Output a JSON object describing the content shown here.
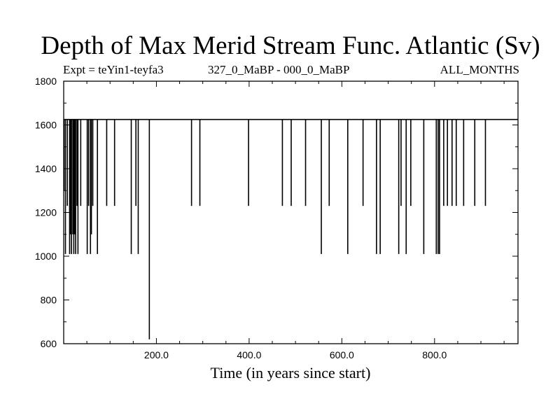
{
  "chart_data": {
    "type": "line",
    "title": "Depth of Max Merid Stream Func. Atlantic (Sv)",
    "subtitle_left": "Expt = teYin1-teyfa3",
    "subtitle_center": "327_0_MaBP - 000_0_MaBP",
    "subtitle_right": "ALL_MONTHS",
    "xlabel": "Time (in years since start)",
    "ylabel": "",
    "xlim": [
      0,
      980
    ],
    "ylim": [
      600,
      1800
    ],
    "x_ticks": [
      200,
      400,
      600,
      800
    ],
    "x_tick_labels": [
      "200.0",
      "400.0",
      "600.0",
      "800.0"
    ],
    "y_ticks": [
      600,
      800,
      1000,
      1200,
      1400,
      1600,
      1800
    ],
    "y_tick_labels": [
      "600",
      "800",
      "1000",
      "1200",
      "1400",
      "1600",
      "1800"
    ],
    "baseline": 1625,
    "grid": false,
    "legend": "none",
    "series": [
      {
        "x": [
          0,
          3,
          7,
          12,
          14,
          16,
          19,
          21,
          23,
          25,
          28,
          30,
          36,
          50,
          53,
          57,
          59,
          62,
          72,
          92,
          109,
          145,
          155,
          160,
          184,
          275,
          293,
          398,
          471,
          490,
          521,
          555,
          572,
          612,
          645,
          674,
          682,
          722,
          727,
          738,
          748,
          776,
          803,
          807,
          810,
          819,
          827,
          837,
          846,
          862,
          886,
          909
        ],
        "y": [
          1300,
          1010,
          1230,
          1010,
          1100,
          1010,
          1100,
          1010,
          1100,
          1010,
          1230,
          1010,
          1230,
          1010,
          1230,
          1010,
          1100,
          1230,
          1010,
          1230,
          1230,
          1010,
          1230,
          1010,
          620,
          1230,
          1230,
          1230,
          1230,
          1230,
          1230,
          1010,
          1230,
          1010,
          1230,
          1010,
          1010,
          1010,
          1230,
          1010,
          1230,
          1010,
          1010,
          1010,
          1010,
          1230,
          1230,
          1230,
          1230,
          1230,
          1230,
          1230
        ]
      }
    ]
  }
}
